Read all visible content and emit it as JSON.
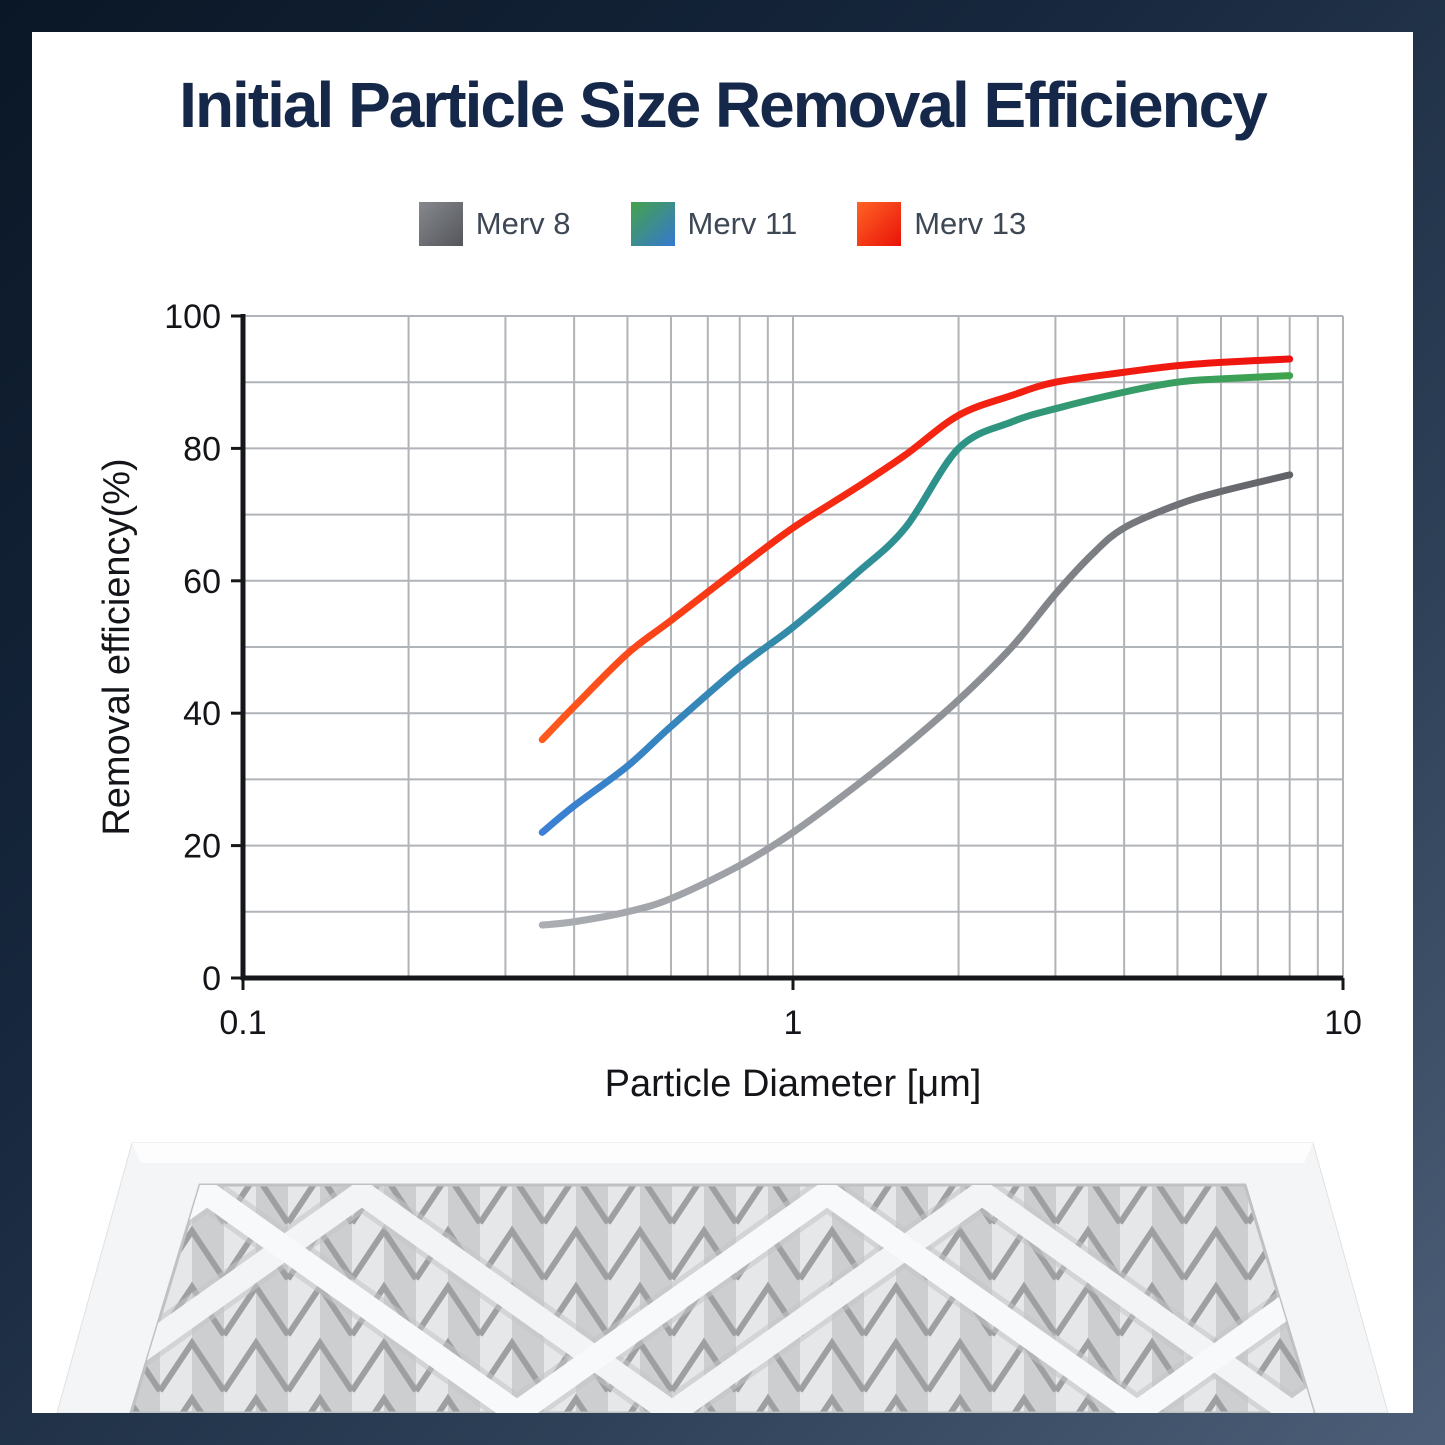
{
  "title": "Initial Particle Size Removal Efficiency",
  "title_color": "#16284a",
  "legend": {
    "text_color": "#3e4855",
    "items": [
      {
        "label": "Merv 8",
        "swatch_from": "#85888d",
        "swatch_to": "#54565b"
      },
      {
        "label": "Merv 11",
        "swatch_from": "#45a24b",
        "swatch_to": "#3578d0"
      },
      {
        "label": "Merv 13",
        "swatch_from": "#ff6426",
        "swatch_to": "#e91208"
      }
    ]
  },
  "chart_data": {
    "type": "line",
    "x_scale": "log",
    "xlabel": "Particle Diameter [μm]",
    "ylabel": "Removal efficiency(%)",
    "xlim": [
      0.1,
      10
    ],
    "ylim": [
      0,
      100
    ],
    "grid": true,
    "legend_position": "top",
    "axis_color": "#15171a",
    "grid_color": "#b0b3b8",
    "tick_label_color": "#131519",
    "label_color": "#131519",
    "x_tick_labels": [
      {
        "value": 0.1,
        "label": "0.1"
      },
      {
        "value": 1,
        "label": "1"
      },
      {
        "value": 10,
        "label": "10"
      }
    ],
    "y_tick_labels": [
      {
        "value": 0,
        "label": "0"
      },
      {
        "value": 20,
        "label": "20"
      },
      {
        "value": 40,
        "label": "40"
      },
      {
        "value": 60,
        "label": "60"
      },
      {
        "value": 80,
        "label": "80"
      },
      {
        "value": 100,
        "label": "100"
      }
    ],
    "x_gridlines": [
      0.1,
      0.2,
      0.3,
      0.4,
      0.5,
      0.6,
      0.7,
      0.8,
      0.9,
      1,
      2,
      3,
      4,
      5,
      6,
      7,
      8,
      9,
      10
    ],
    "y_gridlines": [
      0,
      10,
      20,
      30,
      40,
      50,
      60,
      70,
      80,
      90,
      100
    ],
    "series": [
      {
        "name": "Merv 8",
        "width": 7,
        "gradient": [
          [
            "0%",
            "#aaadb2"
          ],
          [
            "55%",
            "#8e9196"
          ],
          [
            "100%",
            "#606268"
          ]
        ],
        "points": [
          [
            0.35,
            8
          ],
          [
            0.4,
            8.5
          ],
          [
            0.5,
            10
          ],
          [
            0.6,
            12
          ],
          [
            0.8,
            17
          ],
          [
            1,
            22
          ],
          [
            1.3,
            29
          ],
          [
            1.6,
            35
          ],
          [
            2,
            42
          ],
          [
            2.5,
            50
          ],
          [
            3,
            58
          ],
          [
            3.5,
            64
          ],
          [
            4,
            68
          ],
          [
            5,
            71.5
          ],
          [
            6,
            73.5
          ],
          [
            8,
            76
          ]
        ]
      },
      {
        "name": "Merv 11",
        "width": 7,
        "gradient": [
          [
            "0%",
            "#3b7fd6"
          ],
          [
            "55%",
            "#2d9387"
          ],
          [
            "100%",
            "#3fa34c"
          ]
        ],
        "points": [
          [
            0.35,
            22
          ],
          [
            0.4,
            26
          ],
          [
            0.5,
            32
          ],
          [
            0.6,
            38
          ],
          [
            0.8,
            47
          ],
          [
            1,
            53
          ],
          [
            1.3,
            61
          ],
          [
            1.6,
            68
          ],
          [
            2,
            80
          ],
          [
            2.5,
            84
          ],
          [
            3,
            86
          ],
          [
            4,
            88.5
          ],
          [
            5,
            90
          ],
          [
            6,
            90.5
          ],
          [
            8,
            91
          ]
        ]
      },
      {
        "name": "Merv 13",
        "width": 7,
        "gradient": [
          [
            "0%",
            "#ff5a1e"
          ],
          [
            "30%",
            "#f62d12"
          ],
          [
            "100%",
            "#ee1310"
          ]
        ],
        "points": [
          [
            0.35,
            36
          ],
          [
            0.4,
            41
          ],
          [
            0.5,
            49
          ],
          [
            0.6,
            54
          ],
          [
            0.8,
            62
          ],
          [
            1,
            68
          ],
          [
            1.3,
            74
          ],
          [
            1.6,
            79
          ],
          [
            2,
            85
          ],
          [
            2.5,
            88
          ],
          [
            3,
            90
          ],
          [
            4,
            91.5
          ],
          [
            5,
            92.5
          ],
          [
            6,
            93
          ],
          [
            8,
            93.5
          ]
        ]
      }
    ]
  }
}
